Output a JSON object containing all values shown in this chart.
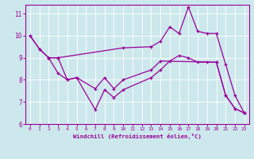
{
  "xlabel": "Windchill (Refroidissement éolien,°C)",
  "bg_color": "#cde8ec",
  "line_color": "#990099",
  "grid_color": "#ffffff",
  "xlim": [
    -0.5,
    23.5
  ],
  "ylim": [
    6,
    11.4
  ],
  "yticks": [
    6,
    7,
    8,
    9,
    10,
    11
  ],
  "xticks": [
    0,
    1,
    2,
    3,
    4,
    5,
    6,
    7,
    8,
    9,
    10,
    11,
    12,
    13,
    14,
    15,
    16,
    17,
    18,
    19,
    20,
    21,
    22,
    23
  ],
  "line1_x": [
    0,
    1,
    2,
    3,
    4,
    5,
    7,
    8,
    9,
    10,
    13,
    14,
    15,
    16,
    17,
    18,
    19,
    20,
    21,
    22,
    23
  ],
  "line1_y": [
    10.0,
    9.4,
    9.0,
    8.3,
    8.0,
    8.1,
    6.65,
    7.55,
    7.2,
    7.55,
    8.1,
    8.45,
    8.85,
    9.1,
    9.0,
    8.8,
    8.8,
    8.8,
    7.3,
    6.7,
    6.5
  ],
  "line2_x": [
    0,
    1,
    2,
    3,
    10,
    13,
    14,
    15,
    16,
    17,
    18,
    19,
    20,
    21,
    22,
    23
  ],
  "line2_y": [
    10.0,
    9.4,
    9.0,
    9.0,
    9.45,
    9.5,
    9.75,
    10.4,
    10.1,
    11.3,
    10.2,
    10.1,
    10.1,
    8.7,
    7.3,
    6.5
  ],
  "line3_x": [
    2,
    3,
    4,
    5,
    7,
    8,
    9,
    10,
    13,
    14,
    20,
    21,
    22,
    23
  ],
  "line3_y": [
    9.0,
    9.0,
    8.0,
    8.1,
    7.6,
    8.1,
    7.6,
    8.0,
    8.45,
    8.85,
    8.8,
    7.3,
    6.7,
    6.5
  ]
}
